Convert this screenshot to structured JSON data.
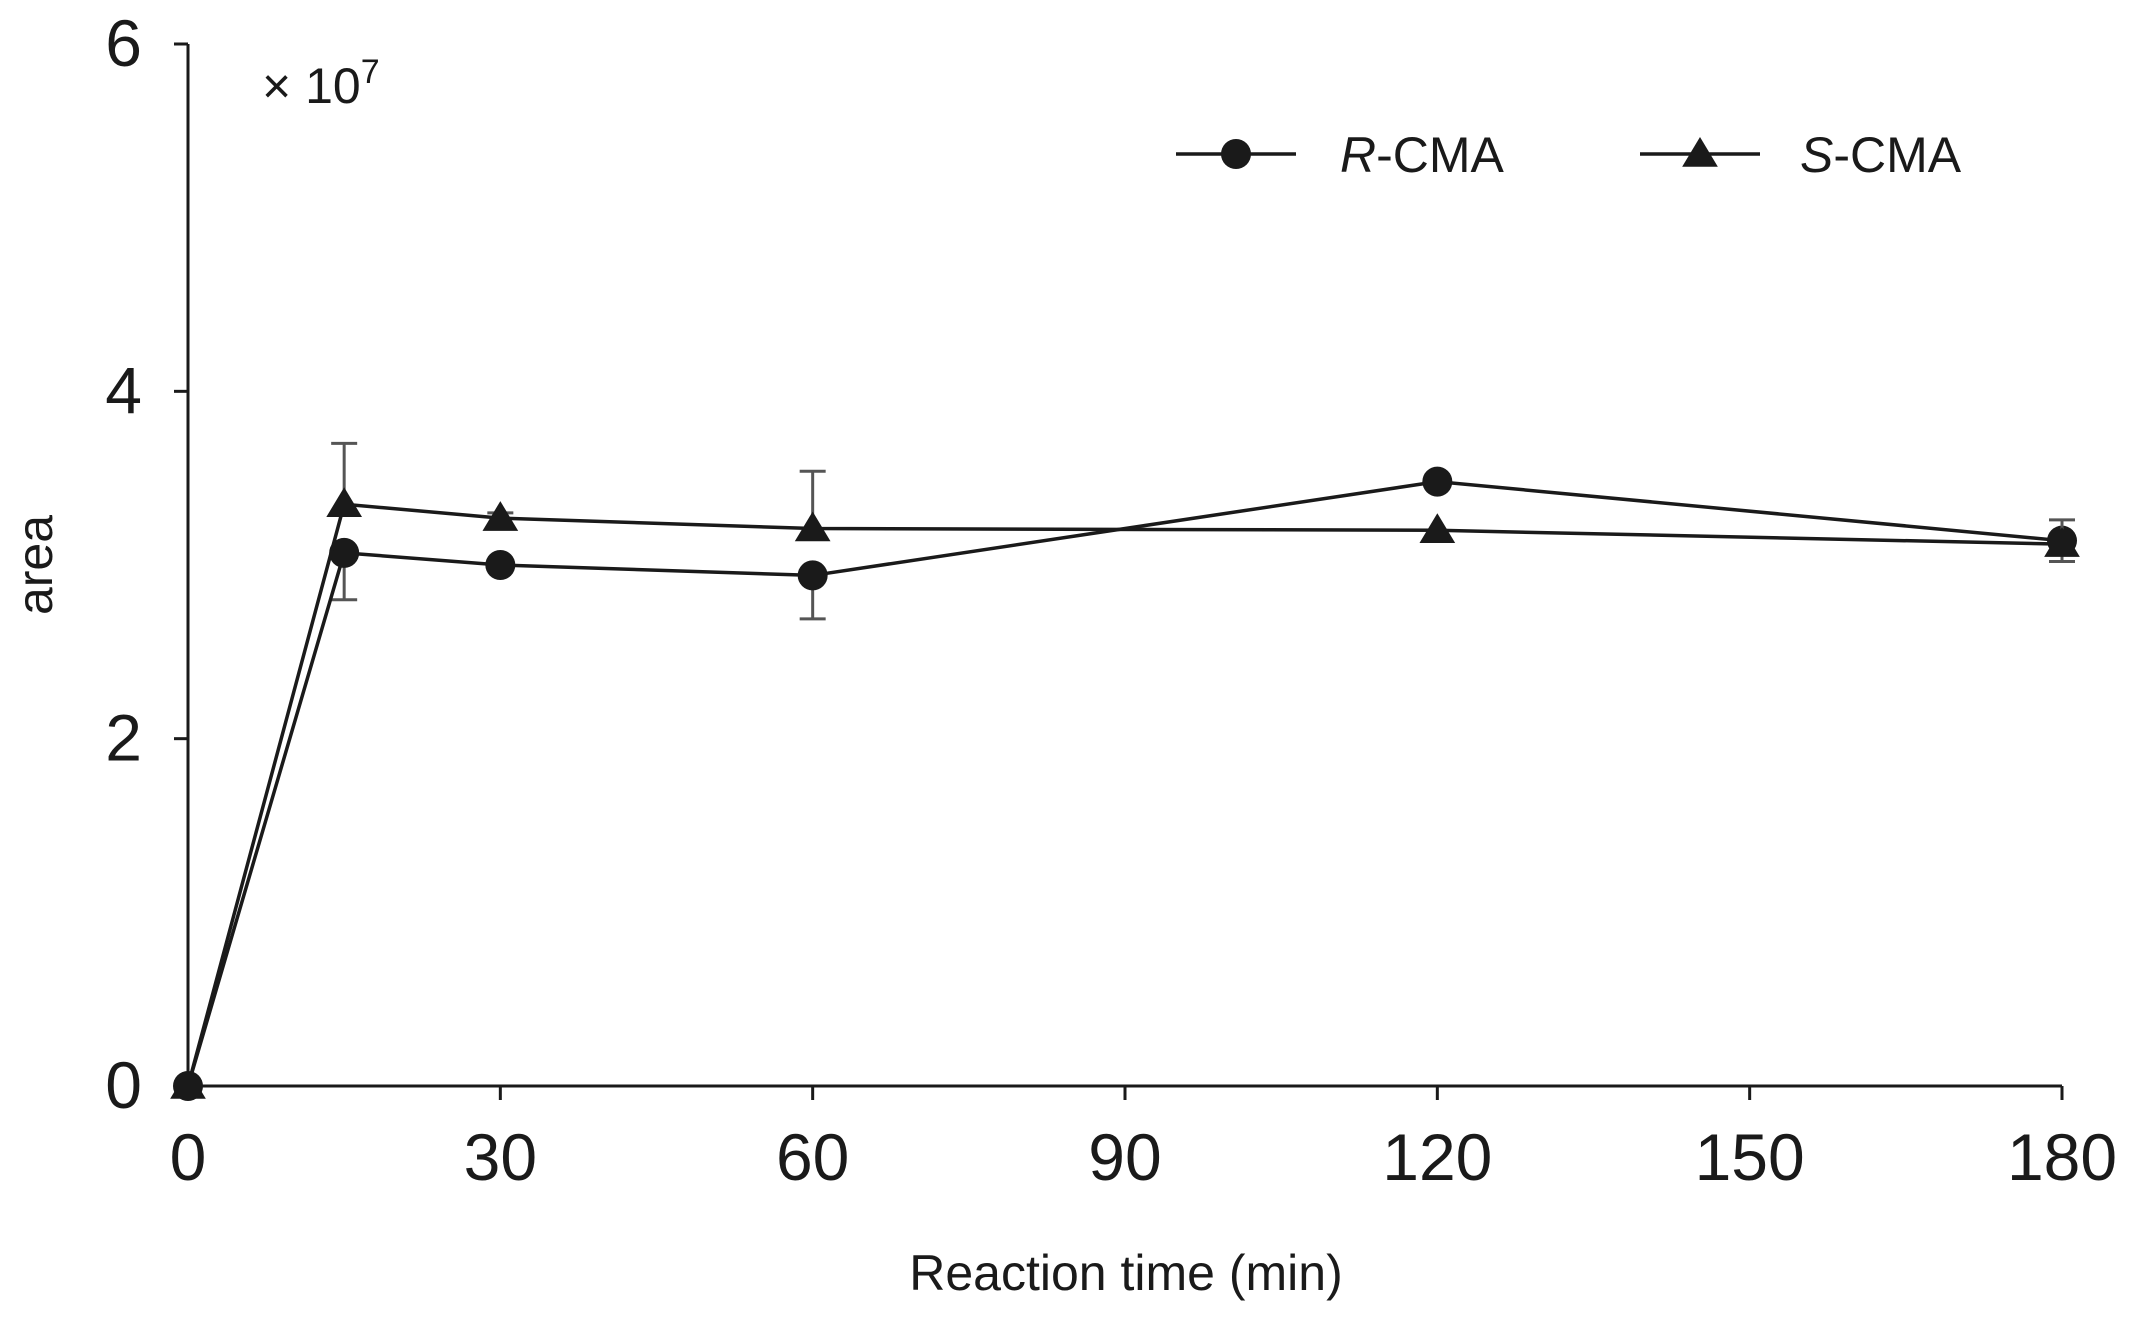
{
  "chart_data": {
    "type": "line",
    "title": "",
    "xlabel": "Reaction time (min)",
    "ylabel": "area",
    "y_multiplier": {
      "sign": "×",
      "base": "10",
      "exponent": "7"
    },
    "xlim": [
      0,
      180
    ],
    "ylim": [
      0,
      6
    ],
    "x_ticks": [
      "0",
      "30",
      "60",
      "90",
      "120",
      "150",
      "180"
    ],
    "y_ticks": [
      "0",
      "2",
      "4",
      "6"
    ],
    "grid": false,
    "legend_position": "top-right",
    "series": [
      {
        "name": "R-CMA",
        "name_italic": "R",
        "name_rest": "-CMA",
        "marker": "circle",
        "x": [
          0,
          15,
          30,
          60,
          120,
          180
        ],
        "y": [
          0,
          3.07,
          3.0,
          2.94,
          3.48,
          3.14
        ],
        "error": [
          0,
          0.27,
          0,
          0.25,
          0,
          0.12
        ],
        "error_direction": "down"
      },
      {
        "name": "S-CMA",
        "name_italic": "S",
        "name_rest": "-CMA",
        "marker": "triangle",
        "x": [
          0,
          15,
          30,
          60,
          120,
          180
        ],
        "y": [
          0,
          3.35,
          3.27,
          3.21,
          3.2,
          3.12
        ],
        "error": [
          0,
          0.35,
          0.03,
          0.33,
          0,
          0.14
        ],
        "error_direction": "up"
      }
    ],
    "colors": {
      "line": "#1a1a1a",
      "error_bar": "#555555",
      "axis": "#1a1a1a"
    }
  }
}
